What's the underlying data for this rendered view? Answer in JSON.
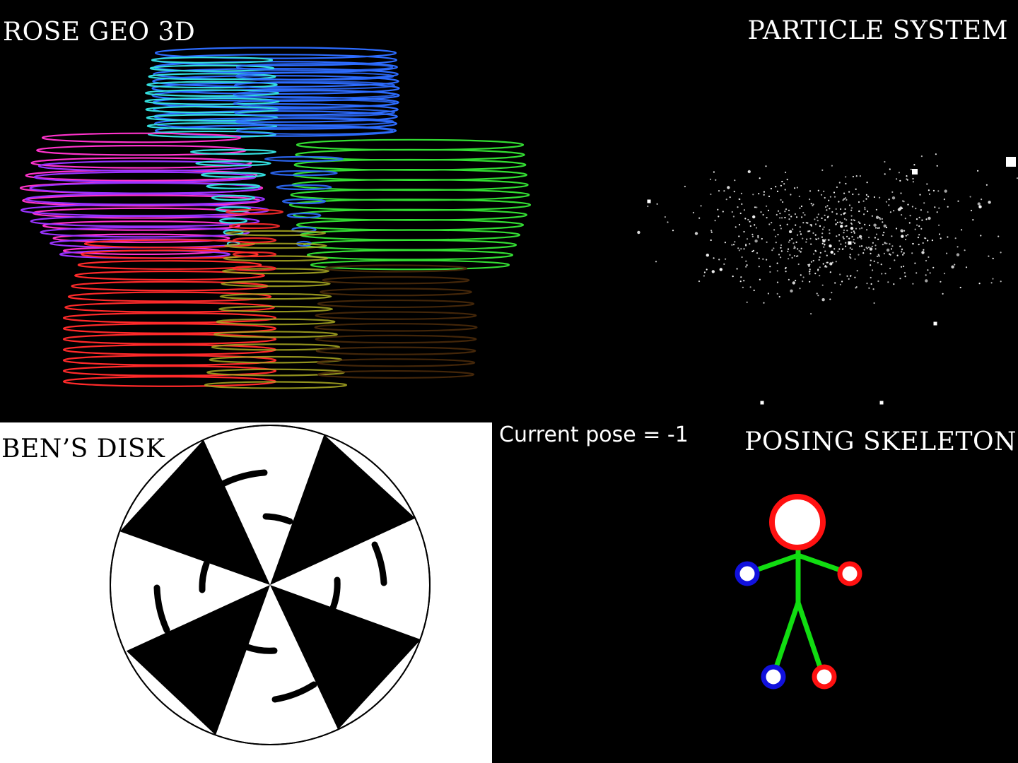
{
  "panels": {
    "rose": {
      "title": "ROSE GEO 3D"
    },
    "particle": {
      "title": "PARTICLE SYSTEM"
    },
    "disk": {
      "title": "BEN’S DISK"
    },
    "skeleton": {
      "title": "POSING SKELETON",
      "pose_text": "Current pose = -1"
    }
  },
  "colors": {
    "rose_blue": "#2d6cff",
    "rose_cyan": "#33dddd",
    "rose_magenta": "#ff33cc",
    "rose_purple": "#9933ff",
    "rose_green": "#33dd33",
    "rose_red": "#ff2a2a",
    "rose_olive": "#aaaa22",
    "rose_brown": "#4a2a0a",
    "skeleton_head_stroke": "#ff1111",
    "skeleton_body": "#11dd11",
    "skeleton_left_joint": "#1111dd",
    "skeleton_right_joint": "#ff1111"
  }
}
